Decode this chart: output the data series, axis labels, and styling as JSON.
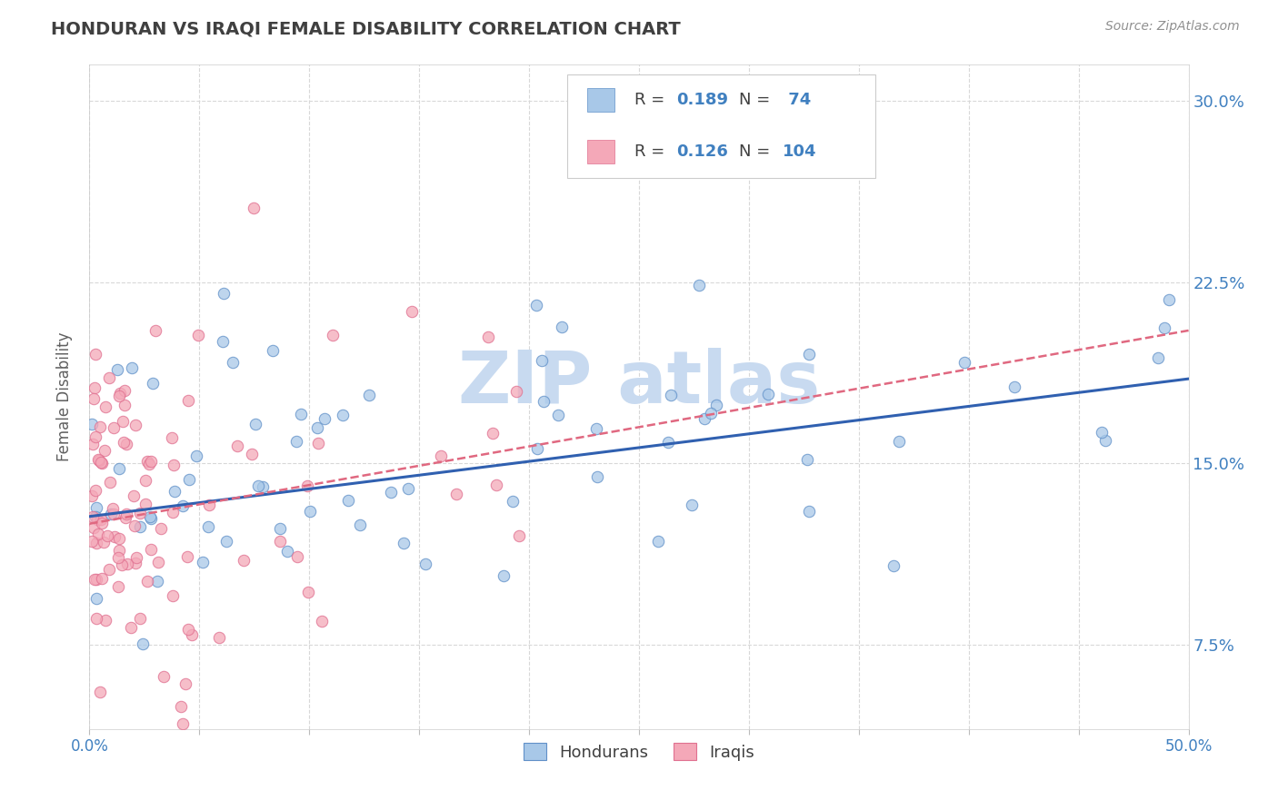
{
  "title": "HONDURAN VS IRAQI FEMALE DISABILITY CORRELATION CHART",
  "source": "Source: ZipAtlas.com",
  "ylabel": "Female Disability",
  "xlim": [
    0.0,
    0.5
  ],
  "ylim": [
    0.04,
    0.315
  ],
  "xticks": [
    0.0,
    0.05,
    0.1,
    0.15,
    0.2,
    0.25,
    0.3,
    0.35,
    0.4,
    0.45,
    0.5
  ],
  "xticklabels": [
    "0.0%",
    "",
    "",
    "",
    "",
    "",
    "",
    "",
    "",
    "",
    "50.0%"
  ],
  "yticks": [
    0.075,
    0.15,
    0.225,
    0.3
  ],
  "yticklabels": [
    "7.5%",
    "15.0%",
    "22.5%",
    "30.0%"
  ],
  "hondurans_R": 0.189,
  "hondurans_N": 74,
  "iraqis_R": 0.126,
  "iraqis_N": 104,
  "blue_color": "#a8c8e8",
  "pink_color": "#f4a8b8",
  "blue_edge_color": "#6090c8",
  "pink_edge_color": "#e07090",
  "blue_line_color": "#3060b0",
  "pink_line_color": "#e06880",
  "watermark_color": "#c8daf0",
  "background_color": "#ffffff",
  "title_color": "#404040",
  "axis_label_color": "#606060",
  "tick_color": "#4080c0",
  "grid_color": "#d8d8d8",
  "source_color": "#909090",
  "legend_text_color": "#404040",
  "legend_value_color": "#4080c0"
}
